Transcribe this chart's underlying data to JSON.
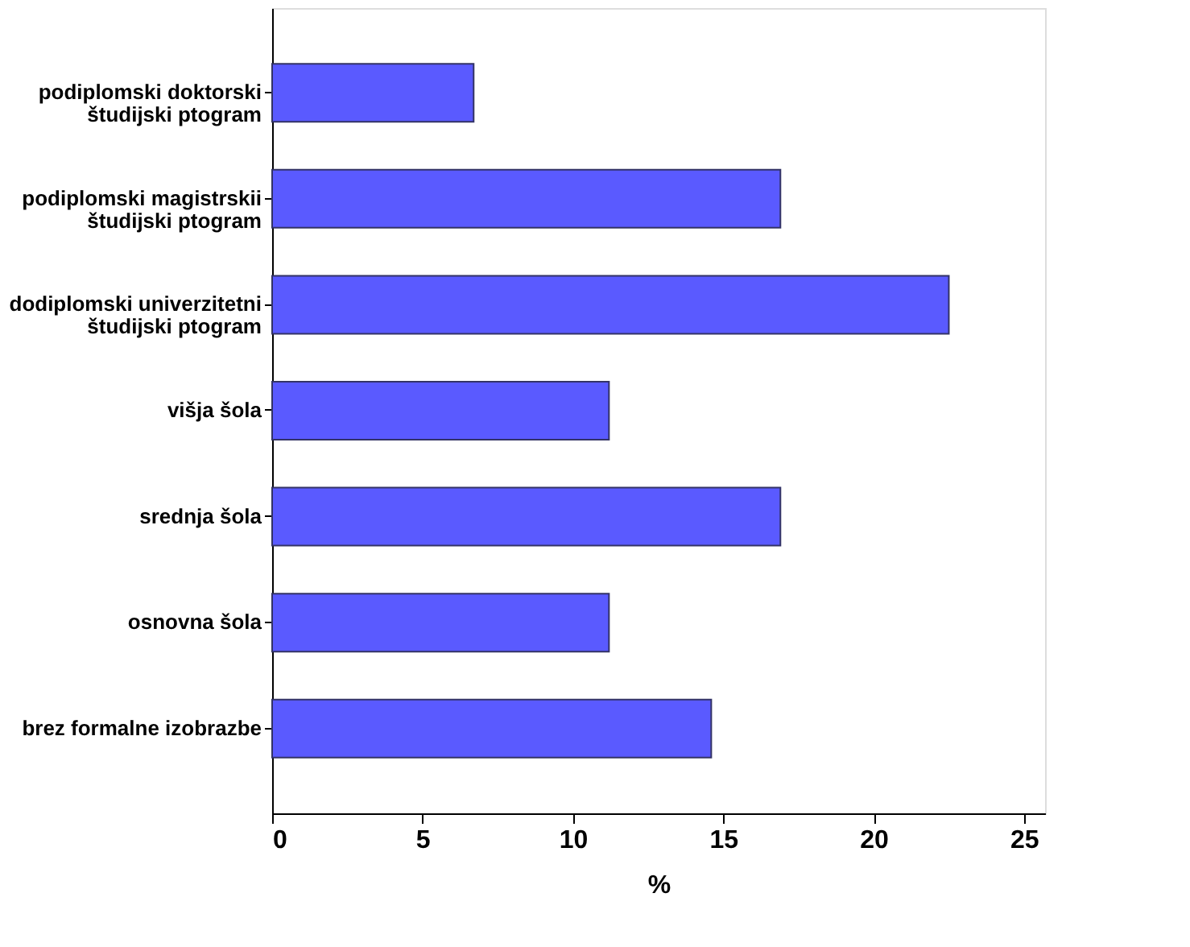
{
  "chart_data": {
    "type": "bar",
    "orientation": "horizontal",
    "xlabel": "%",
    "categories": [
      "podiplomski doktorski\nštudijski ptogram",
      "podiplomski magistrskii\nštudijski ptogram",
      "dodiplomski univerzitetni\nštudijski ptogram",
      "višja šola",
      "srednja šola",
      "osnovna šola",
      "brez formalne izobrazbe"
    ],
    "values": [
      6.7,
      16.9,
      22.5,
      11.2,
      16.9,
      11.2,
      14.6
    ],
    "color": "#5a5aff",
    "xlim": [
      0,
      25.7
    ],
    "xticks": [
      0,
      5,
      10,
      15,
      20,
      25
    ],
    "grid": false
  }
}
